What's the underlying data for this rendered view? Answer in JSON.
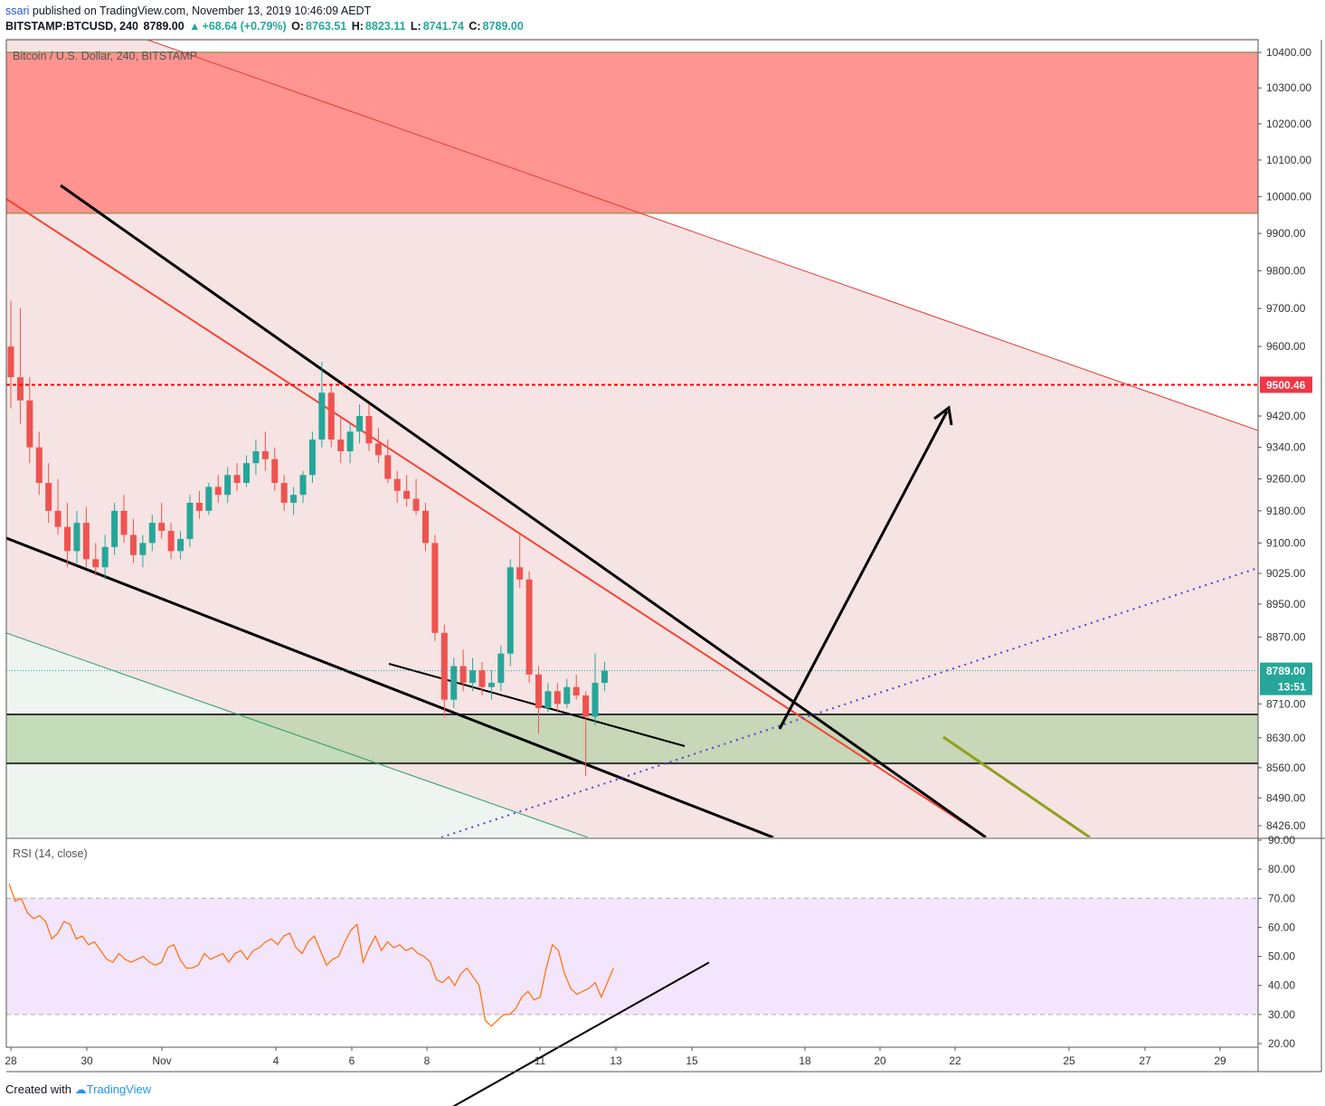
{
  "header": {
    "user": "ssari",
    "published_text": "published on TradingView.com, November 13, 2019 10:46:09 AEDT",
    "symbol": "BITSTAMP:BTCUSD, 240",
    "last": "8789.00",
    "change": "+68.64 (+0.79%)",
    "open_label": "O:",
    "open": "8763.51",
    "high_label": "H:",
    "high": "8823.11",
    "low_label": "L:",
    "low": "8741.74",
    "close_label": "C:",
    "close": "8789.00"
  },
  "chart_data": [
    {
      "type": "candlestick",
      "title": "Bitcoin / U.S. Dollar, 240, BITSTAMP",
      "yscale": "log",
      "ylim": [
        8380,
        10440
      ],
      "y_ticks": [
        "10400.00",
        "10300.00",
        "10200.00",
        "10100.00",
        "10000.00",
        "9900.00",
        "9800.00",
        "9700.00",
        "9600.00",
        "9500.46",
        "9420.00",
        "9340.00",
        "9260.00",
        "9180.00",
        "9100.00",
        "9025.00",
        "8950.00",
        "8870.00",
        "8789.00",
        "8710.00",
        "8630.00",
        "8560.00",
        "8490.00",
        "8426.00"
      ],
      "price_labels": {
        "level": "9500.46",
        "last": "8789.00",
        "countdown": "13:51"
      },
      "x_ticks": [
        "28",
        "30",
        "Nov",
        "4",
        "6",
        "8",
        "11",
        "13",
        "15",
        "18",
        "20",
        "22",
        "25",
        "27",
        "29"
      ],
      "zones": [
        {
          "name": "resistance",
          "from": 9955,
          "to": 10400,
          "color": "#ff8a85"
        },
        {
          "name": "support",
          "from": 8570,
          "to": 8685,
          "color": "#b7d3a8"
        }
      ],
      "horizontal_line": {
        "value": 9500.46,
        "color": "#ff0000",
        "style": "dashed"
      },
      "last_price": 8789.0,
      "ohlc": [
        [
          9600,
          9720,
          9440,
          9520
        ],
        [
          9520,
          9700,
          9400,
          9460
        ],
        [
          9460,
          9520,
          9300,
          9340
        ],
        [
          9340,
          9380,
          9220,
          9250
        ],
        [
          9250,
          9300,
          9150,
          9180
        ],
        [
          9180,
          9260,
          9120,
          9140
        ],
        [
          9140,
          9200,
          9040,
          9080
        ],
        [
          9080,
          9180,
          9050,
          9150
        ],
        [
          9150,
          9190,
          9040,
          9060
        ],
        [
          9060,
          9100,
          9020,
          9040
        ],
        [
          9040,
          9120,
          9010,
          9090
        ],
        [
          9090,
          9200,
          9070,
          9180
        ],
        [
          9180,
          9220,
          9100,
          9120
        ],
        [
          9120,
          9160,
          9050,
          9070
        ],
        [
          9070,
          9120,
          9040,
          9100
        ],
        [
          9100,
          9170,
          9080,
          9150
        ],
        [
          9150,
          9200,
          9110,
          9130
        ],
        [
          9130,
          9150,
          9060,
          9080
        ],
        [
          9080,
          9130,
          9060,
          9110
        ],
        [
          9110,
          9220,
          9090,
          9200
        ],
        [
          9200,
          9230,
          9160,
          9180
        ],
        [
          9180,
          9250,
          9170,
          9240
        ],
        [
          9240,
          9270,
          9200,
          9220
        ],
        [
          9220,
          9290,
          9200,
          9270
        ],
        [
          9270,
          9300,
          9230,
          9250
        ],
        [
          9250,
          9320,
          9240,
          9300
        ],
        [
          9300,
          9360,
          9270,
          9330
        ],
        [
          9330,
          9380,
          9280,
          9310
        ],
        [
          9310,
          9340,
          9230,
          9250
        ],
        [
          9250,
          9270,
          9180,
          9200
        ],
        [
          9200,
          9240,
          9170,
          9220
        ],
        [
          9220,
          9280,
          9200,
          9270
        ],
        [
          9270,
          9380,
          9250,
          9360
        ],
        [
          9360,
          9560,
          9340,
          9480
        ],
        [
          9480,
          9500,
          9340,
          9360
        ],
        [
          9360,
          9420,
          9300,
          9330
        ],
        [
          9330,
          9400,
          9300,
          9380
        ],
        [
          9380,
          9450,
          9350,
          9420
        ],
        [
          9420,
          9450,
          9330,
          9350
        ],
        [
          9350,
          9390,
          9300,
          9320
        ],
        [
          9320,
          9360,
          9250,
          9260
        ],
        [
          9260,
          9280,
          9200,
          9230
        ],
        [
          9230,
          9270,
          9190,
          9210
        ],
        [
          9210,
          9260,
          9170,
          9180
        ],
        [
          9180,
          9200,
          9080,
          9100
        ],
        [
          9100,
          9120,
          8860,
          8880
        ],
        [
          8880,
          8900,
          8680,
          8720
        ],
        [
          8720,
          8820,
          8700,
          8800
        ],
        [
          8800,
          8840,
          8740,
          8760
        ],
        [
          8760,
          8820,
          8740,
          8790
        ],
        [
          8790,
          8810,
          8730,
          8750
        ],
        [
          8750,
          8790,
          8720,
          8760
        ],
        [
          8760,
          8850,
          8740,
          8830
        ],
        [
          8830,
          9060,
          8800,
          9040
        ],
        [
          9040,
          9120,
          8990,
          9010
        ],
        [
          9010,
          9030,
          8760,
          8780
        ],
        [
          8780,
          8800,
          8640,
          8700
        ],
        [
          8700,
          8760,
          8690,
          8740
        ],
        [
          8740,
          8760,
          8690,
          8710
        ],
        [
          8710,
          8770,
          8700,
          8750
        ],
        [
          8750,
          8780,
          8720,
          8730
        ],
        [
          8730,
          8740,
          8540,
          8680
        ],
        [
          8680,
          8830,
          8660,
          8760
        ],
        [
          8760,
          8810,
          8740,
          8789
        ]
      ]
    },
    {
      "type": "line",
      "title": "RSI (14, close)",
      "ylim": [
        20,
        90
      ],
      "y_ticks": [
        "90.00",
        "80.00",
        "70.00",
        "60.00",
        "50.00",
        "40.00",
        "30.00",
        "20.00"
      ],
      "band": [
        30,
        70
      ],
      "series": [
        {
          "values": [
            75,
            69,
            70,
            65,
            63,
            64,
            62,
            56,
            58,
            62,
            61,
            56,
            57,
            54,
            55,
            52,
            49,
            48,
            51,
            49,
            48,
            49,
            50,
            48,
            47,
            48,
            53,
            54,
            49,
            46,
            46,
            47,
            51,
            49,
            50,
            51,
            48,
            51,
            52,
            49,
            52,
            53,
            55,
            56,
            54,
            57,
            58,
            53,
            51,
            55,
            57,
            52,
            47,
            49,
            50,
            55,
            59,
            61,
            48,
            53,
            57,
            52,
            55,
            53,
            54,
            52,
            53,
            51,
            50,
            48,
            42,
            41,
            43,
            40,
            44,
            46,
            43,
            40,
            28,
            26,
            28,
            30,
            30,
            32,
            36,
            38,
            35,
            36,
            46,
            54,
            52,
            44,
            39,
            37,
            38,
            39,
            41,
            36,
            41,
            46
          ]
        }
      ],
      "trendline": [
        [
          19,
          41.5
        ],
        [
          47,
          47
        ]
      ]
    }
  ],
  "footer": {
    "created_with": "Created with",
    "brand": "TradingView"
  },
  "colors": {
    "up": "#26a69a",
    "down": "#ef5350",
    "rsi_line": "#ff6d00",
    "rsi_band": "#f3e5fc"
  }
}
